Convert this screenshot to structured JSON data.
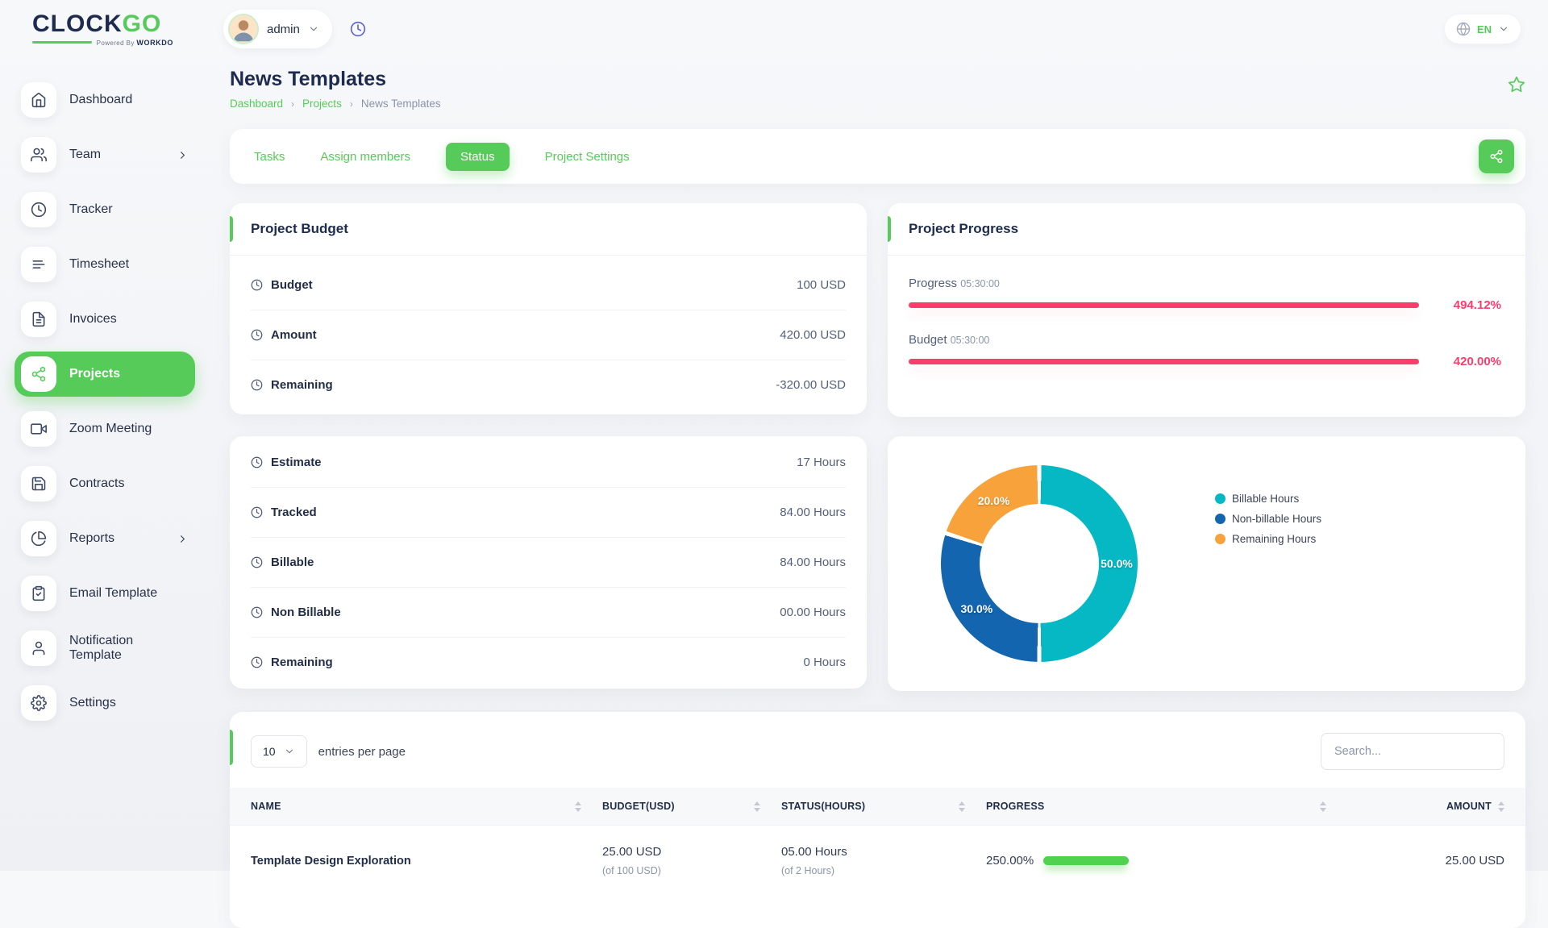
{
  "brand": {
    "name_primary": "CLOCK",
    "name_accent": "GO",
    "tagline": "Powered By",
    "tagline_brand": "WORKDO"
  },
  "header": {
    "user_name": "admin",
    "language": "EN"
  },
  "sidebar": {
    "items": [
      {
        "label": "Dashboard",
        "icon": "home",
        "active": false,
        "chevron": false
      },
      {
        "label": "Team",
        "icon": "users",
        "active": false,
        "chevron": true
      },
      {
        "label": "Tracker",
        "icon": "clock",
        "active": false,
        "chevron": false
      },
      {
        "label": "Timesheet",
        "icon": "lines",
        "active": false,
        "chevron": false
      },
      {
        "label": "Invoices",
        "icon": "file",
        "active": false,
        "chevron": false
      },
      {
        "label": "Projects",
        "icon": "share",
        "active": true,
        "chevron": false
      },
      {
        "label": "Zoom Meeting",
        "icon": "video",
        "active": false,
        "chevron": false
      },
      {
        "label": "Contracts",
        "icon": "save",
        "active": false,
        "chevron": false
      },
      {
        "label": "Reports",
        "icon": "pie",
        "active": false,
        "chevron": true
      },
      {
        "label": "Email Template",
        "icon": "clipboard",
        "active": false,
        "chevron": false
      },
      {
        "label": "Notification Template",
        "icon": "user",
        "active": false,
        "chevron": false
      },
      {
        "label": "Settings",
        "icon": "gear",
        "active": false,
        "chevron": false
      }
    ]
  },
  "page": {
    "title": "News Templates",
    "breadcrumb": [
      "Dashboard",
      "Projects",
      "News Templates"
    ]
  },
  "tabs": {
    "items": [
      "Tasks",
      "Assign members",
      "Status",
      "Project Settings"
    ],
    "active": "Status"
  },
  "budget_card": {
    "title": "Project Budget",
    "rows": [
      {
        "label": "Budget",
        "value": "100 USD"
      },
      {
        "label": "Amount",
        "value": "420.00 USD"
      },
      {
        "label": "Remaining",
        "value": "-320.00 USD"
      }
    ]
  },
  "progress_card": {
    "title": "Project Progress",
    "bars": [
      {
        "label": "Progress",
        "time": "05:30:00",
        "percent_label": "494.12%",
        "fill_percent": 100
      },
      {
        "label": "Budget",
        "time": "05:30:00",
        "percent_label": "420.00%",
        "fill_percent": 100
      }
    ]
  },
  "hours_card": {
    "rows": [
      {
        "label": "Estimate",
        "value": "17 Hours"
      },
      {
        "label": "Tracked",
        "value": "84.00 Hours"
      },
      {
        "label": "Billable",
        "value": "84.00 Hours"
      },
      {
        "label": "Non Billable",
        "value": "00.00 Hours"
      },
      {
        "label": "Remaining",
        "value": "0 Hours"
      }
    ]
  },
  "chart_data": {
    "type": "pie",
    "subtype": "donut",
    "labels": [
      "Billable Hours",
      "Non-billable Hours",
      "Remaining Hours"
    ],
    "values": [
      50.0,
      30.0,
      20.0
    ],
    "slice_labels": [
      "50.0%",
      "30.0%",
      "20.0%"
    ],
    "colors": [
      "#06b8c4",
      "#1265ae",
      "#f7a23b"
    ],
    "legend_position": "right",
    "start_angle_deg": 0,
    "direction": "clockwise"
  },
  "table_card": {
    "entries_value": "10",
    "entries_label": "entries per page",
    "search_placeholder": "Search...",
    "columns": [
      "NAME",
      "BUDGET(USD)",
      "STATUS(HOURS)",
      "PROGRESS",
      "AMOUNT"
    ],
    "rows": [
      {
        "name": "Template Design Exploration",
        "budget": "25.00 USD",
        "budget_sub": "(of 100 USD)",
        "status": "05.00 Hours",
        "status_sub": "(of 2 Hours)",
        "progress_label": "250.00%",
        "progress_percent": 100,
        "amount": "25.00 USD"
      }
    ]
  },
  "colors": {
    "primary_green": "#57cb59",
    "pink": "#f83e6b",
    "table_bar_green": "#50d24e",
    "navy_text": "#1d2b4f"
  }
}
